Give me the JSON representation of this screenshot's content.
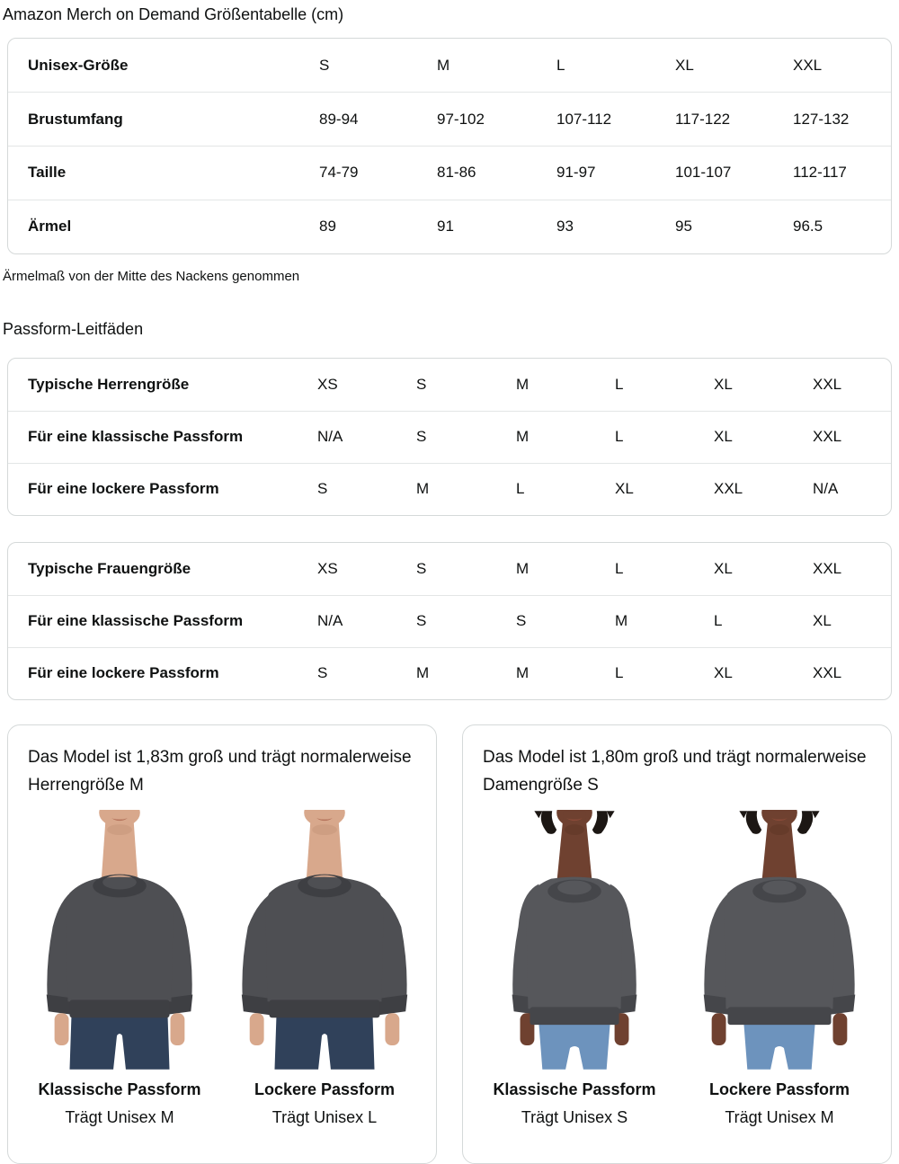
{
  "title": "Amazon Merch on Demand Größentabelle (cm)",
  "note": "Ärmelmaß von der Mitte des Nackens genommen",
  "fit_guides_heading": "Passform-Leitfäden",
  "size_table": {
    "rows": [
      {
        "label": "Unisex-Größe",
        "values": [
          "S",
          "M",
          "L",
          "XL",
          "XXL"
        ]
      },
      {
        "label": "Brustumfang",
        "values": [
          "89-94",
          "97-102",
          "107-112",
          "117-122",
          "127-132"
        ]
      },
      {
        "label": "Taille",
        "values": [
          "74-79",
          "81-86",
          "91-97",
          "101-107",
          "112-117"
        ]
      },
      {
        "label": "Ärmel",
        "values": [
          "89",
          "91",
          "93",
          "95",
          "96.5"
        ]
      }
    ]
  },
  "mens_table": {
    "rows": [
      {
        "label": "Typische Herrengröße",
        "values": [
          "XS",
          "S",
          "M",
          "L",
          "XL",
          "XXL"
        ]
      },
      {
        "label": "Für eine klassische Passform",
        "values": [
          "N/A",
          "S",
          "M",
          "L",
          "XL",
          "XXL"
        ]
      },
      {
        "label": "Für eine lockere Passform",
        "values": [
          "S",
          "M",
          "L",
          "XL",
          "XXL",
          "N/A"
        ]
      }
    ]
  },
  "womens_table": {
    "rows": [
      {
        "label": "Typische Frauengröße",
        "values": [
          "XS",
          "S",
          "M",
          "L",
          "XL",
          "XXL"
        ]
      },
      {
        "label": "Für eine klassische Passform",
        "values": [
          "N/A",
          "S",
          "S",
          "M",
          "L",
          "XL"
        ]
      },
      {
        "label": "Für eine lockere Passform",
        "values": [
          "S",
          "M",
          "M",
          "L",
          "XL",
          "XXL"
        ]
      }
    ]
  },
  "cards": [
    {
      "description": "Das Model ist 1,83m groß und trägt normalerweise Herrengröße M",
      "models": [
        {
          "fit": "Klassische Passform",
          "wears": "Trägt Unisex M"
        },
        {
          "fit": "Lockere Passform",
          "wears": "Trägt Unisex L"
        }
      ]
    },
    {
      "description": "Das Model ist 1,80m groß und trägt normalerweise Damengröße S",
      "models": [
        {
          "fit": "Klassische Passform",
          "wears": "Trägt Unisex S"
        },
        {
          "fit": "Lockere Passform",
          "wears": "Trägt Unisex M"
        }
      ]
    }
  ],
  "colors": {
    "text": "#0f1111",
    "table_border": "#d5d9d9",
    "row_divider": "#e3e6e6",
    "sweatshirt_charcoal": "#4e4f53",
    "mens_jeans": "#30415a",
    "womens_jeans": "#6d93bd"
  }
}
